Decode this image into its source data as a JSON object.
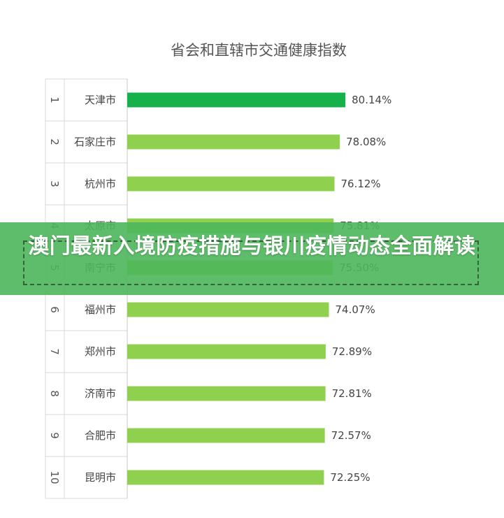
{
  "chart_data": {
    "type": "bar",
    "orientation": "horizontal",
    "title": "省会和直辖市交通健康指数",
    "ranks": [
      "1",
      "2",
      "3",
      "4",
      "5",
      "6",
      "7",
      "8",
      "9",
      "10"
    ],
    "categories": [
      "天津市",
      "石家庄市",
      "杭州市",
      "太原市",
      "南宁市",
      "福州市",
      "郑州市",
      "济南市",
      "合肥市",
      "昆明市"
    ],
    "values": [
      80.14,
      78.08,
      76.12,
      75.81,
      75.5,
      74.07,
      72.89,
      72.81,
      72.57,
      72.25
    ],
    "value_labels": [
      "80.14%",
      "78.08%",
      "76.12%",
      "75.81%",
      "75.50%",
      "74.07%",
      "72.89%",
      "72.81%",
      "72.57%",
      "72.25%"
    ],
    "colors": {
      "top": "#16b14b",
      "default": "#8fd14f"
    },
    "grid": false,
    "legend": "none"
  },
  "banner": {
    "title": "澳门最新入境防疫措施与银川疫情动态全面解读",
    "color": "#4cb65a"
  }
}
